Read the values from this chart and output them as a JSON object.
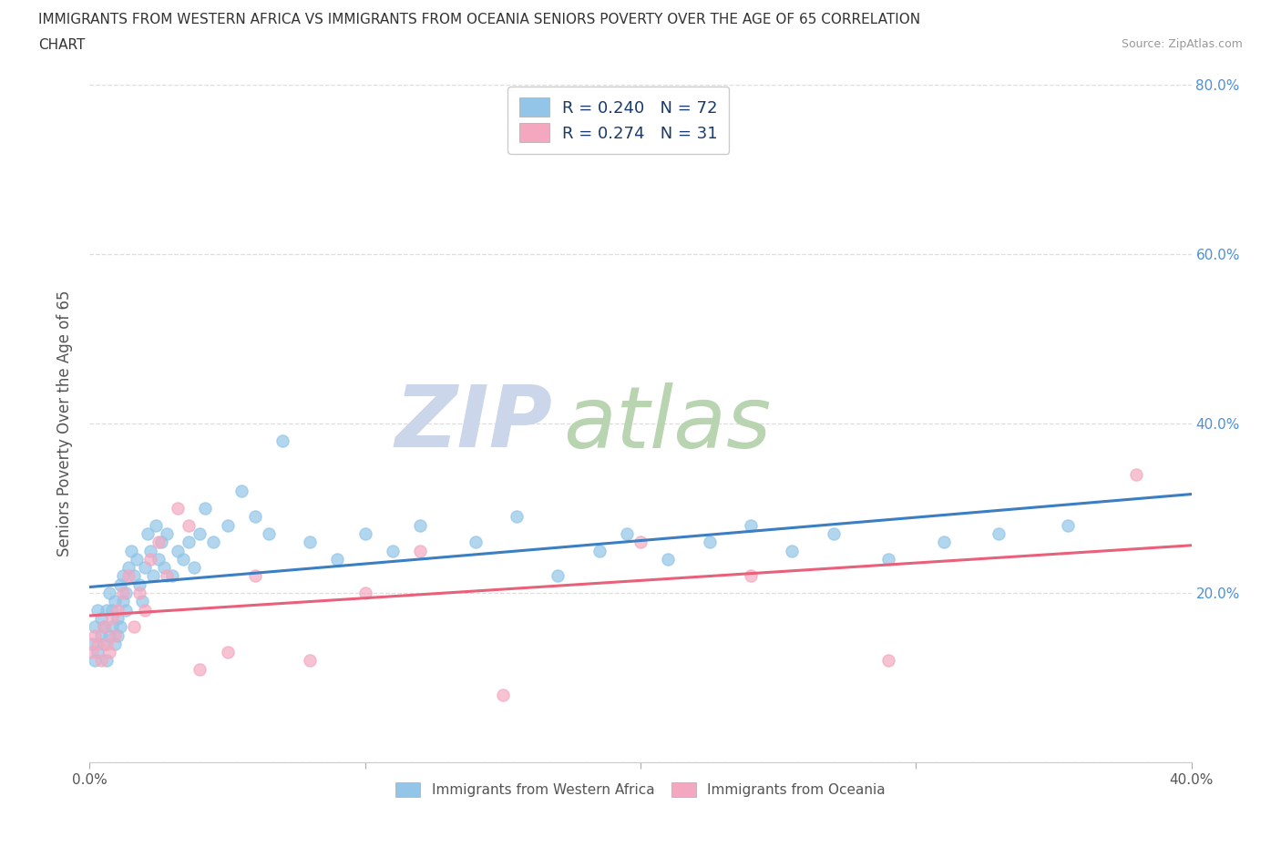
{
  "title_line1": "IMMIGRANTS FROM WESTERN AFRICA VS IMMIGRANTS FROM OCEANIA SENIORS POVERTY OVER THE AGE OF 65 CORRELATION",
  "title_line2": "CHART",
  "source": "Source: ZipAtlas.com",
  "ylabel": "Seniors Poverty Over the Age of 65",
  "xlim": [
    0.0,
    0.4
  ],
  "ylim": [
    0.0,
    0.8
  ],
  "xticks": [
    0.0,
    0.1,
    0.2,
    0.3,
    0.4
  ],
  "yticks": [
    0.0,
    0.2,
    0.4,
    0.6,
    0.8
  ],
  "xticklabels": [
    "0.0%",
    "",
    "",
    "",
    "40.0%"
  ],
  "yticklabels": [
    "",
    "20.0%",
    "40.0%",
    "60.0%",
    "80.0%"
  ],
  "blue_color": "#92C5E8",
  "pink_color": "#F4A8C0",
  "blue_line_color": "#3B7EC2",
  "pink_line_color": "#E8607A",
  "R_blue": 0.24,
  "N_blue": 72,
  "R_pink": 0.274,
  "N_pink": 31,
  "legend_label_blue": "R = 0.240   N = 72",
  "legend_label_pink": "R = 0.274   N = 31",
  "watermark_zip": "ZIP",
  "watermark_atlas": "atlas",
  "watermark_color_zip": "#ccd6e8",
  "watermark_color_atlas": "#a8c4a0",
  "legend_text_color": "#1a3a6b",
  "bg_color": "#ffffff",
  "grid_color": "#dddddd",
  "blue_x": [
    0.001,
    0.002,
    0.002,
    0.003,
    0.003,
    0.004,
    0.004,
    0.005,
    0.005,
    0.006,
    0.006,
    0.007,
    0.007,
    0.008,
    0.008,
    0.009,
    0.009,
    0.01,
    0.01,
    0.011,
    0.011,
    0.012,
    0.012,
    0.013,
    0.013,
    0.014,
    0.015,
    0.016,
    0.017,
    0.018,
    0.019,
    0.02,
    0.021,
    0.022,
    0.023,
    0.024,
    0.025,
    0.026,
    0.027,
    0.028,
    0.03,
    0.032,
    0.034,
    0.036,
    0.038,
    0.04,
    0.042,
    0.045,
    0.05,
    0.055,
    0.06,
    0.065,
    0.07,
    0.08,
    0.09,
    0.1,
    0.11,
    0.12,
    0.14,
    0.155,
    0.17,
    0.185,
    0.195,
    0.21,
    0.225,
    0.24,
    0.255,
    0.27,
    0.29,
    0.31,
    0.33,
    0.355
  ],
  "blue_y": [
    0.14,
    0.16,
    0.12,
    0.18,
    0.13,
    0.15,
    0.17,
    0.16,
    0.14,
    0.18,
    0.12,
    0.2,
    0.15,
    0.18,
    0.16,
    0.14,
    0.19,
    0.17,
    0.15,
    0.21,
    0.16,
    0.19,
    0.22,
    0.2,
    0.18,
    0.23,
    0.25,
    0.22,
    0.24,
    0.21,
    0.19,
    0.23,
    0.27,
    0.25,
    0.22,
    0.28,
    0.24,
    0.26,
    0.23,
    0.27,
    0.22,
    0.25,
    0.24,
    0.26,
    0.23,
    0.27,
    0.3,
    0.26,
    0.28,
    0.32,
    0.29,
    0.27,
    0.38,
    0.26,
    0.24,
    0.27,
    0.25,
    0.28,
    0.26,
    0.29,
    0.22,
    0.25,
    0.27,
    0.24,
    0.26,
    0.28,
    0.25,
    0.27,
    0.24,
    0.26,
    0.27,
    0.28
  ],
  "pink_x": [
    0.001,
    0.002,
    0.003,
    0.004,
    0.005,
    0.006,
    0.007,
    0.008,
    0.009,
    0.01,
    0.012,
    0.014,
    0.016,
    0.018,
    0.02,
    0.022,
    0.025,
    0.028,
    0.032,
    0.036,
    0.04,
    0.05,
    0.06,
    0.08,
    0.1,
    0.12,
    0.15,
    0.2,
    0.24,
    0.29,
    0.38
  ],
  "pink_y": [
    0.13,
    0.15,
    0.14,
    0.12,
    0.16,
    0.14,
    0.13,
    0.17,
    0.15,
    0.18,
    0.2,
    0.22,
    0.16,
    0.2,
    0.18,
    0.24,
    0.26,
    0.22,
    0.3,
    0.28,
    0.11,
    0.13,
    0.22,
    0.12,
    0.2,
    0.25,
    0.08,
    0.26,
    0.22,
    0.12,
    0.34
  ]
}
